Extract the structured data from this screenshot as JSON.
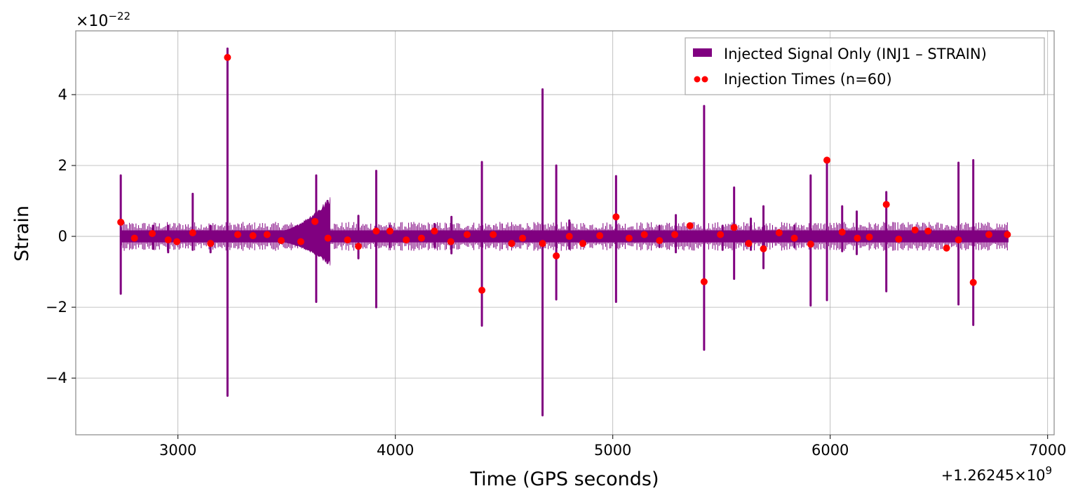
{
  "chart_data": {
    "type": "line",
    "title": "",
    "xlabel": "Time (GPS seconds)",
    "ylabel": "Strain",
    "x_offset_label": "+1.26245×10",
    "x_offset_exp": "9",
    "y_scale_label": "×10",
    "y_scale_exp": "−22",
    "xlim": [
      2530,
      7030
    ],
    "ylim": [
      -5.6,
      5.8
    ],
    "xticks": [
      3000,
      4000,
      5000,
      6000,
      7000
    ],
    "xtick_labels": [
      "3000",
      "4000",
      "5000",
      "6000",
      "7000"
    ],
    "yticks": [
      -4,
      -2,
      0,
      2,
      4
    ],
    "ytick_labels": [
      "−4",
      "−2",
      "0",
      "2",
      "4"
    ],
    "grid": true,
    "legend_position": "top-right",
    "signal_color": "#800080",
    "marker_color": "#ff0000",
    "background_band": {
      "x_start": 2735,
      "x_end": 6820,
      "amplitude": 0.17
    },
    "envelope_bursts": [
      {
        "x_start": 3490,
        "x_end": 3700,
        "max": 1.0,
        "min": -0.75
      }
    ],
    "series": [
      {
        "name": "Injected Signal Only (INJ1 – STRAIN)",
        "kind": "spikes",
        "spikes": [
          {
            "x": 2737,
            "max": 1.72,
            "min": -1.62
          },
          {
            "x": 2885,
            "max": 0.3,
            "min": -0.35
          },
          {
            "x": 2955,
            "max": 0.3,
            "min": -0.45
          },
          {
            "x": 3068,
            "max": 1.2,
            "min": -0.38
          },
          {
            "x": 3150,
            "max": 0.3,
            "min": -0.45
          },
          {
            "x": 3228,
            "max": 5.3,
            "min": -4.5
          },
          {
            "x": 3636,
            "max": 1.72,
            "min": -1.85
          },
          {
            "x": 3688,
            "max": 1.0,
            "min": -0.75
          },
          {
            "x": 3830,
            "max": 0.58,
            "min": -0.62
          },
          {
            "x": 3912,
            "max": 1.85,
            "min": -2.0
          },
          {
            "x": 3975,
            "max": 0.3,
            "min": -0.3
          },
          {
            "x": 4180,
            "max": 0.35,
            "min": -0.3
          },
          {
            "x": 4258,
            "max": 0.55,
            "min": -0.48
          },
          {
            "x": 4398,
            "max": 2.1,
            "min": -2.52
          },
          {
            "x": 4677,
            "max": 4.15,
            "min": -5.05
          },
          {
            "x": 4740,
            "max": 2.0,
            "min": -1.78
          },
          {
            "x": 4800,
            "max": 0.45,
            "min": -0.35
          },
          {
            "x": 5015,
            "max": 1.7,
            "min": -1.85
          },
          {
            "x": 5215,
            "max": 0.3,
            "min": -0.3
          },
          {
            "x": 5290,
            "max": 0.6,
            "min": -0.45
          },
          {
            "x": 5420,
            "max": 3.68,
            "min": -3.2
          },
          {
            "x": 5505,
            "max": 0.3,
            "min": -0.38
          },
          {
            "x": 5558,
            "max": 1.38,
            "min": -1.2
          },
          {
            "x": 5635,
            "max": 0.5,
            "min": -0.38
          },
          {
            "x": 5693,
            "max": 0.85,
            "min": -0.9
          },
          {
            "x": 5835,
            "max": 0.3,
            "min": -0.3
          },
          {
            "x": 5910,
            "max": 1.72,
            "min": -1.95
          },
          {
            "x": 5985,
            "max": 2.15,
            "min": -1.8
          },
          {
            "x": 6055,
            "max": 0.85,
            "min": -0.42
          },
          {
            "x": 6122,
            "max": 0.7,
            "min": -0.5
          },
          {
            "x": 6258,
            "max": 1.25,
            "min": -1.55
          },
          {
            "x": 6590,
            "max": 2.08,
            "min": -1.92
          },
          {
            "x": 6658,
            "max": 2.15,
            "min": -2.5
          }
        ]
      },
      {
        "name": "Injection Times (n=60)",
        "kind": "scatter",
        "x": [
          2737,
          2800,
          2882,
          2955,
          2995,
          3068,
          3150,
          3228,
          3275,
          3345,
          3410,
          3475,
          3565,
          3630,
          3690,
          3780,
          3830,
          3912,
          3975,
          4050,
          4120,
          4180,
          4255,
          4330,
          4398,
          4450,
          4535,
          4585,
          4677,
          4740,
          4800,
          4862,
          4940,
          5015,
          5075,
          5145,
          5215,
          5285,
          5355,
          5420,
          5495,
          5558,
          5625,
          5693,
          5765,
          5835,
          5910,
          5985,
          6055,
          6125,
          6180,
          6258,
          6315,
          6390,
          6450,
          6535,
          6590,
          6658,
          6730,
          6815
        ],
        "y": [
          0.4,
          -0.05,
          0.08,
          -0.1,
          -0.15,
          0.1,
          -0.2,
          5.05,
          0.05,
          0.02,
          0.05,
          -0.12,
          -0.15,
          0.42,
          -0.05,
          -0.1,
          -0.28,
          0.15,
          0.15,
          -0.1,
          -0.05,
          0.15,
          -0.15,
          0.05,
          -1.52,
          0.05,
          -0.2,
          -0.05,
          -0.2,
          -0.55,
          0.0,
          -0.2,
          0.02,
          0.55,
          -0.05,
          0.05,
          -0.12,
          0.05,
          0.3,
          -1.28,
          0.05,
          0.25,
          -0.2,
          -0.35,
          0.1,
          -0.05,
          -0.22,
          2.15,
          0.12,
          -0.05,
          -0.02,
          0.9,
          -0.08,
          0.18,
          0.15,
          -0.33,
          -0.1,
          -1.3,
          0.05,
          0.05
        ]
      }
    ]
  }
}
